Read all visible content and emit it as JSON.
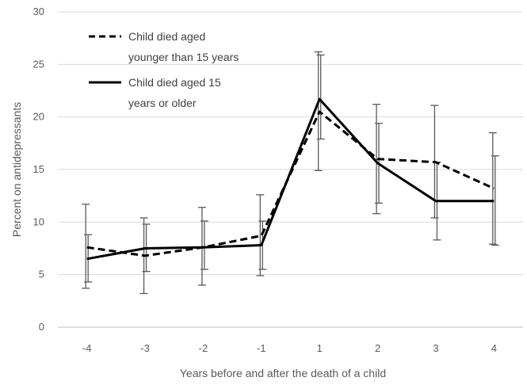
{
  "chart_data": {
    "type": "line",
    "xlabel": "Years before and after the death of a child",
    "ylabel": "Percent on antidepressants",
    "categories": [
      "-4",
      "-3",
      "-2",
      "-1",
      "1",
      "2",
      "3",
      "4"
    ],
    "ylim": [
      0,
      30
    ],
    "yticks": [
      0,
      5,
      10,
      15,
      20,
      25,
      30
    ],
    "grid": true,
    "legend_position": "top-left",
    "series": [
      {
        "name": "Child died aged younger than 15 years",
        "legend_lines": [
          "Child died aged",
          "younger than 15 years"
        ],
        "style": "dashed",
        "color": "#000000",
        "values": [
          7.6,
          6.8,
          7.6,
          8.7,
          20.5,
          16.0,
          15.7,
          13.2
        ],
        "error_low": [
          3.7,
          3.2,
          4.0,
          4.9,
          14.9,
          10.8,
          10.4,
          7.9
        ],
        "error_high": [
          11.7,
          10.4,
          11.4,
          12.6,
          26.2,
          21.2,
          21.1,
          18.5
        ]
      },
      {
        "name": "Child died aged 15 years or older",
        "legend_lines": [
          "Child died aged 15",
          "years or older"
        ],
        "style": "solid",
        "color": "#000000",
        "values": [
          6.5,
          7.5,
          7.6,
          7.8,
          21.7,
          15.6,
          12.0,
          12.0
        ],
        "error_low": [
          4.3,
          5.3,
          5.5,
          5.5,
          17.9,
          11.8,
          8.3,
          7.8
        ],
        "error_high": [
          8.8,
          9.8,
          10.1,
          10.1,
          25.9,
          19.4,
          15.7,
          16.3
        ]
      }
    ]
  }
}
